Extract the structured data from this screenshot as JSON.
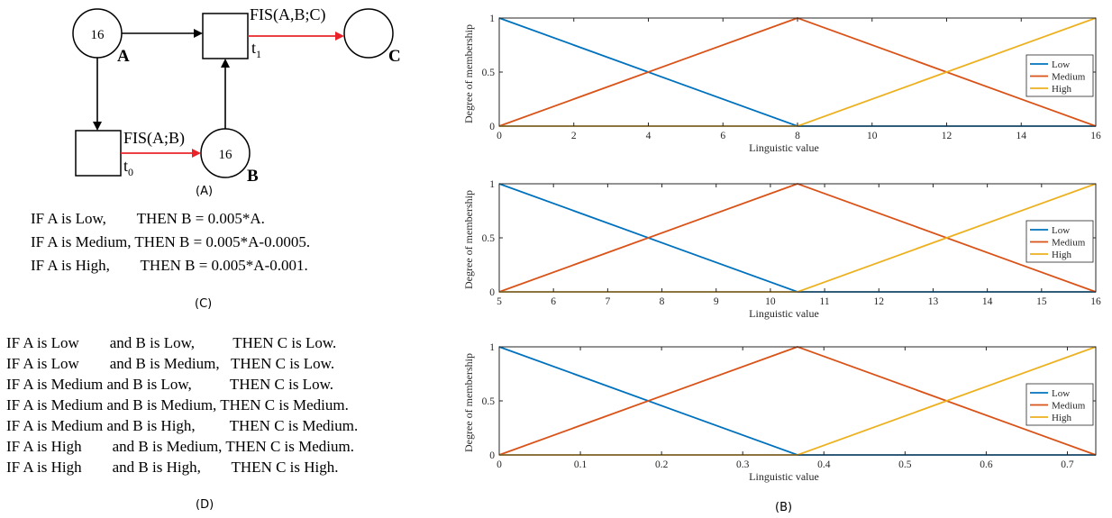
{
  "petri_net": {
    "place_a": {
      "tokens": "16",
      "label": "A"
    },
    "place_b": {
      "tokens": "16",
      "label": "B"
    },
    "place_c": {
      "label": "C"
    },
    "transition_t0": {
      "label": "t",
      "subscript": "0",
      "function": "FIS(A;B)"
    },
    "transition_t1": {
      "label": "t",
      "subscript": "1",
      "function": "FIS(A,B;C)"
    }
  },
  "captions": {
    "a": "(A)",
    "b": "(B)",
    "c": "(C)",
    "d": "(D)"
  },
  "rules_b": [
    "IF A is Low,        THEN B = 0.005*A.",
    "IF A is Medium, THEN B = 0.005*A-0.0005.",
    "IF A is High,        THEN B = 0.005*A-0.001."
  ],
  "rules_c": [
    "IF A is Low        and B is Low,          THEN C is Low.",
    "IF A is Low        and B is Medium,   THEN C is Low.",
    "IF A is Medium and B is Low,          THEN C is Low.",
    "IF A is Medium and B is Medium, THEN C is Medium.",
    "IF A is Medium and B is High,         THEN C is Medium.",
    "IF A is High        and B is Medium, THEN C is Medium.",
    "IF A is High        and B is High,        THEN C is High."
  ],
  "colors": {
    "low": "#0072BD",
    "medium": "#D95319",
    "high": "#EDB120",
    "arc_red": "#E8242A"
  },
  "chart_data": [
    {
      "type": "line",
      "xlabel": "Linguistic value",
      "ylabel": "Degree of membership",
      "xlim": [
        0,
        16
      ],
      "ylim": [
        0,
        1
      ],
      "xticks": [
        "0",
        "2",
        "4",
        "6",
        "8",
        "10",
        "12",
        "14",
        "16"
      ],
      "yticks": [
        "0",
        "0.5",
        "1"
      ],
      "legend_position": "right",
      "series": [
        {
          "name": "Low",
          "x": [
            0,
            8,
            16
          ],
          "y": [
            1,
            0,
            0
          ]
        },
        {
          "name": "Medium",
          "x": [
            0,
            8,
            16
          ],
          "y": [
            0,
            1,
            0
          ]
        },
        {
          "name": "High",
          "x": [
            0,
            8,
            16
          ],
          "y": [
            0,
            0,
            1
          ]
        }
      ]
    },
    {
      "type": "line",
      "xlabel": "Linguistic value",
      "ylabel": "Degree of membership",
      "xlim": [
        5,
        16
      ],
      "ylim": [
        0,
        1
      ],
      "xticks": [
        "5",
        "6",
        "7",
        "8",
        "9",
        "10",
        "11",
        "12",
        "13",
        "14",
        "15",
        "16"
      ],
      "yticks": [
        "0",
        "0.5",
        "1"
      ],
      "legend_position": "right",
      "series": [
        {
          "name": "Low",
          "x": [
            5,
            10.5,
            16
          ],
          "y": [
            1,
            0,
            0
          ]
        },
        {
          "name": "Medium",
          "x": [
            5,
            10.5,
            16
          ],
          "y": [
            0,
            1,
            0
          ]
        },
        {
          "name": "High",
          "x": [
            5,
            10.5,
            16
          ],
          "y": [
            0,
            0,
            1
          ]
        }
      ]
    },
    {
      "type": "line",
      "xlabel": "Linguistic value",
      "ylabel": "Degree of membership",
      "xlim": [
        0,
        0.735
      ],
      "ylim": [
        0,
        1
      ],
      "xticks": [
        "0",
        "0.1",
        "0.2",
        "0.3",
        "0.4",
        "0.5",
        "0.6",
        "0.7"
      ],
      "yticks": [
        "0",
        "0.5",
        "1"
      ],
      "legend_position": "right",
      "series": [
        {
          "name": "Low",
          "x": [
            0,
            0.3675,
            0.735
          ],
          "y": [
            1,
            0,
            0
          ]
        },
        {
          "name": "Medium",
          "x": [
            0,
            0.3675,
            0.735
          ],
          "y": [
            0,
            1,
            0
          ]
        },
        {
          "name": "High",
          "x": [
            0,
            0.3675,
            0.735
          ],
          "y": [
            0,
            0,
            1
          ]
        }
      ]
    }
  ]
}
